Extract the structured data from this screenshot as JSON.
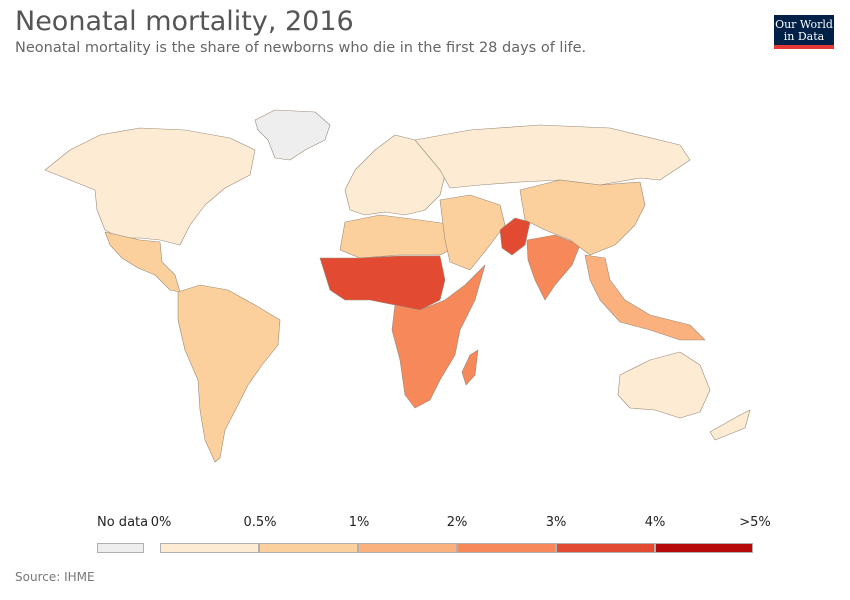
{
  "header": {
    "title": "Neonatal mortality, 2016",
    "subtitle": "Neonatal mortality is the share of newborns who die in the first 28 days of life."
  },
  "logo": {
    "line1": "Our World",
    "line2": "in Data"
  },
  "legend": {
    "no_data_label": "No data",
    "no_data_color": "#eeeeee",
    "ticks": [
      "0%",
      "0.5%",
      "1%",
      "2%",
      "3%",
      "4%",
      ">5%"
    ],
    "bins": [
      {
        "color": "#fdebd3"
      },
      {
        "color": "#fcd09c"
      },
      {
        "color": "#fbb17e"
      },
      {
        "color": "#f6885a"
      },
      {
        "color": "#e24b32"
      },
      {
        "color": "#b50a0a"
      }
    ]
  },
  "map": {
    "land_color": "#fdebd3",
    "regions": [
      {
        "name": "North America",
        "bin": 0
      },
      {
        "name": "Mexico & Central America",
        "bin": 1
      },
      {
        "name": "South America",
        "bin": 1
      },
      {
        "name": "Europe",
        "bin": 0
      },
      {
        "name": "Russia",
        "bin": 0
      },
      {
        "name": "North Africa",
        "bin": 1
      },
      {
        "name": "West & Central Africa",
        "bin": 4
      },
      {
        "name": "East & Southern Africa",
        "bin": 3
      },
      {
        "name": "Middle East",
        "bin": 1
      },
      {
        "name": "South Asia",
        "bin": 3
      },
      {
        "name": "Pakistan",
        "bin": 4
      },
      {
        "name": "China",
        "bin": 1
      },
      {
        "name": "Southeast Asia",
        "bin": 2
      },
      {
        "name": "Australia",
        "bin": 0
      },
      {
        "name": "Greenland",
        "bin": "nodata"
      }
    ]
  },
  "footer": {
    "source": "Source: IHME"
  }
}
